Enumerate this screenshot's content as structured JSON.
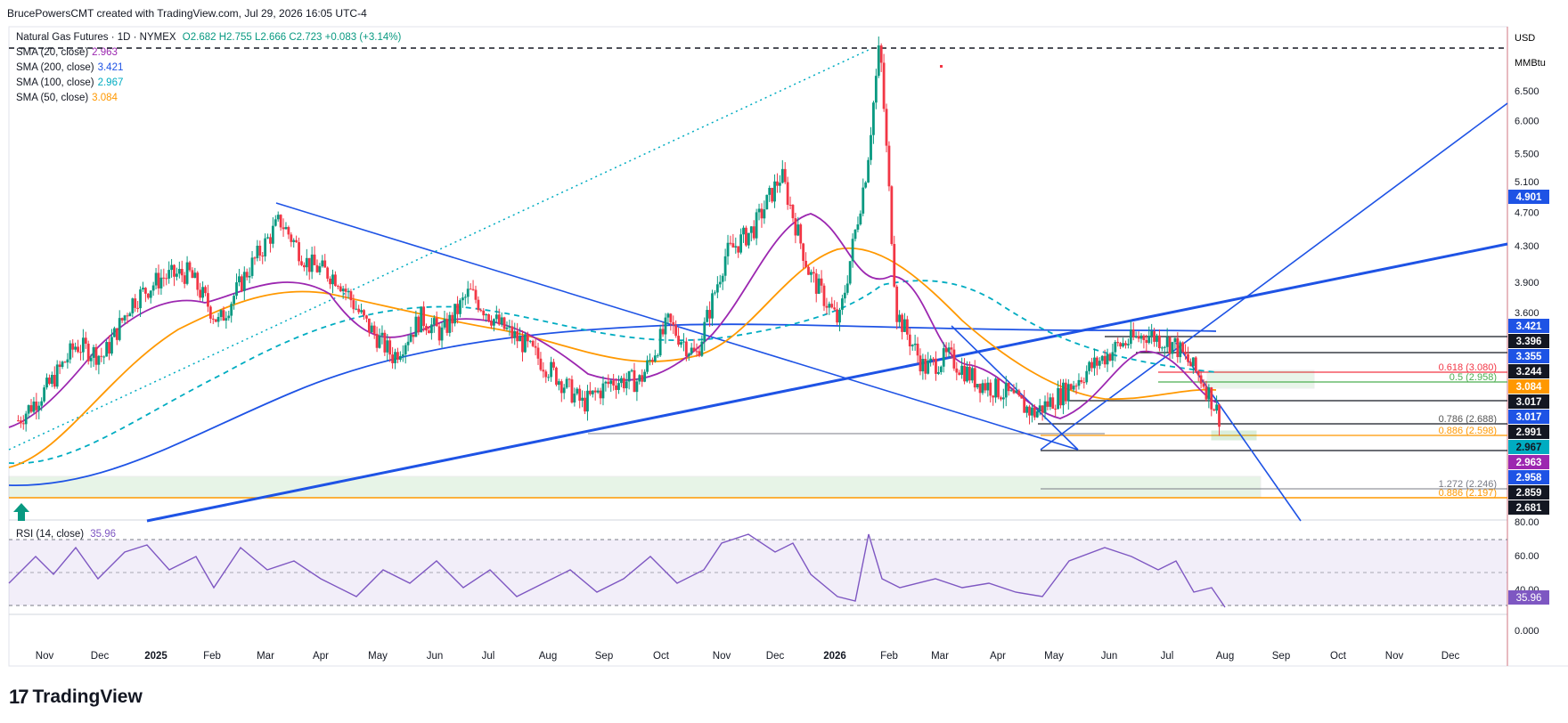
{
  "header": {
    "credit": "BrucePowersCMT created with TradingView.com, Jul 29, 2026 16:05 UTC-4"
  },
  "symbol": {
    "name": "Natural Gas Futures · 1D · NYMEX",
    "ohlc": "O2.682  H2.755  L2.666  C2.723  +0.083 (+3.14%)",
    "change_color": "#089981"
  },
  "indicators": [
    {
      "label": "SMA (20, close)",
      "value": "2.963",
      "color": "#9c27b0"
    },
    {
      "label": "SMA (200, close)",
      "value": "3.421",
      "color": "#1e53e5"
    },
    {
      "label": "SMA (100, close)",
      "value": "2.967",
      "color": "#00acc1"
    },
    {
      "label": "SMA (50, close)",
      "value": "3.084",
      "color": "#ff9800"
    }
  ],
  "rsi": {
    "label": "RSI (14, close)",
    "value": "35.96",
    "color": "#7e57c2"
  },
  "axis": {
    "currency": "USD",
    "unit": "MMBtu",
    "rsi_unit": "80.00"
  },
  "brand": {
    "name": "TradingView"
  },
  "chart_data": {
    "type": "candlestick",
    "price_scale": "log",
    "ylim": [
      2.1,
      7.6
    ],
    "price_ticks": [
      6.5,
      6.0,
      5.5,
      5.1,
      4.7,
      4.3,
      3.9,
      3.6
    ],
    "x_ticks": [
      "Nov",
      "Dec",
      "2025",
      "Feb",
      "Mar",
      "Apr",
      "May",
      "Jun",
      "Jul",
      "Aug",
      "Sep",
      "Oct",
      "Nov",
      "Dec",
      "2026",
      "Feb",
      "Mar",
      "Apr",
      "May",
      "Jun",
      "Jul",
      "Aug",
      "Sep",
      "Oct",
      "Nov",
      "Dec"
    ],
    "close_path": [
      [
        "2024-10-20",
        2.7
      ],
      [
        "2024-11-05",
        2.95
      ],
      [
        "2024-11-20",
        3.3
      ],
      [
        "2024-12-05",
        3.2
      ],
      [
        "2024-12-20",
        3.7
      ],
      [
        "2025-01-05",
        3.95
      ],
      [
        "2025-01-20",
        4.0
      ],
      [
        "2025-02-05",
        3.5
      ],
      [
        "2025-02-20",
        4.0
      ],
      [
        "2025-03-10",
        4.6
      ],
      [
        "2025-03-25",
        4.1
      ],
      [
        "2025-04-10",
        3.95
      ],
      [
        "2025-04-25",
        3.5
      ],
      [
        "2025-05-10",
        3.2
      ],
      [
        "2025-05-25",
        3.55
      ],
      [
        "2025-06-05",
        3.4
      ],
      [
        "2025-06-20",
        3.8
      ],
      [
        "2025-07-05",
        3.5
      ],
      [
        "2025-07-20",
        3.3
      ],
      [
        "2025-08-05",
        3.05
      ],
      [
        "2025-08-20",
        2.82
      ],
      [
        "2025-09-05",
        3.0
      ],
      [
        "2025-09-20",
        3.0
      ],
      [
        "2025-10-05",
        3.5
      ],
      [
        "2025-10-20",
        3.2
      ],
      [
        "2025-11-05",
        4.2
      ],
      [
        "2025-11-20",
        4.5
      ],
      [
        "2025-12-05",
        5.2
      ],
      [
        "2025-12-20",
        4.0
      ],
      [
        "2026-01-05",
        3.5
      ],
      [
        "2026-01-20",
        5.3
      ],
      [
        "2026-01-27",
        7.4
      ],
      [
        "2026-02-05",
        3.6
      ],
      [
        "2026-02-20",
        3.1
      ],
      [
        "2026-03-05",
        3.2
      ],
      [
        "2026-03-20",
        3.0
      ],
      [
        "2026-04-05",
        2.9
      ],
      [
        "2026-04-20",
        2.75
      ],
      [
        "2026-05-05",
        2.9
      ],
      [
        "2026-05-20",
        3.1
      ],
      [
        "2026-06-05",
        3.3
      ],
      [
        "2026-06-20",
        3.4
      ],
      [
        "2026-07-05",
        3.3
      ],
      [
        "2026-07-20",
        3.0
      ],
      [
        "2026-07-29",
        2.723
      ]
    ],
    "price_labels": [
      {
        "text": "4.901",
        "price": 4.901,
        "bg": "#1e53e5",
        "fg": "#ffffff"
      },
      {
        "text": "3.421",
        "price": 3.421,
        "bg": "#1e53e5",
        "fg": "#ffffff"
      },
      {
        "text": "3.396",
        "price": 3.396,
        "bg": "#131722",
        "fg": "#ffffff"
      },
      {
        "text": "3.355",
        "price": 3.355,
        "bg": "#1e53e5",
        "fg": "#ffffff"
      },
      {
        "text": "3.244",
        "price": 3.244,
        "bg": "#131722",
        "fg": "#ffffff"
      },
      {
        "text": "3.084",
        "price": 3.084,
        "bg": "#ff9800",
        "fg": "#ffffff"
      },
      {
        "text": "3.017",
        "price": 3.017,
        "bg": "#131722",
        "fg": "#ffffff"
      },
      {
        "text": "3.017",
        "price": 3.017,
        "bg": "#1e53e5",
        "fg": "#ffffff"
      },
      {
        "text": "2.991",
        "price": 2.991,
        "bg": "#131722",
        "fg": "#ffffff"
      },
      {
        "text": "2.967",
        "price": 2.967,
        "bg": "#00acc1",
        "fg": "#131722"
      },
      {
        "text": "2.963",
        "price": 2.963,
        "bg": "#9c27b0",
        "fg": "#ffffff"
      },
      {
        "text": "2.958",
        "price": 2.958,
        "bg": "#1e53e5",
        "fg": "#ffffff"
      },
      {
        "text": "2.859",
        "price": 2.859,
        "bg": "#131722",
        "fg": "#ffffff"
      },
      {
        "text": "2.681",
        "price": 2.681,
        "bg": "#131722",
        "fg": "#ffffff"
      }
    ],
    "fib_labels": [
      {
        "text": "0.618 (3.080)",
        "color": "#f23645"
      },
      {
        "text": "0.5 (2.958)",
        "color": "#4caf50"
      },
      {
        "text": "0.786 (2.688)",
        "color": "#555555"
      },
      {
        "text": "0.886 (2.598)",
        "color": "#ff9800"
      },
      {
        "text": "1.272 (2.246)",
        "color": "#787b86"
      },
      {
        "text": "0.886 (2.197)",
        "color": "#ff9800"
      }
    ],
    "rsi_ticks": [
      "80.00",
      "60.00",
      "40.00",
      "0.000"
    ],
    "rsi_levels": [
      70,
      50,
      30
    ],
    "rsi_last": 35.96
  }
}
